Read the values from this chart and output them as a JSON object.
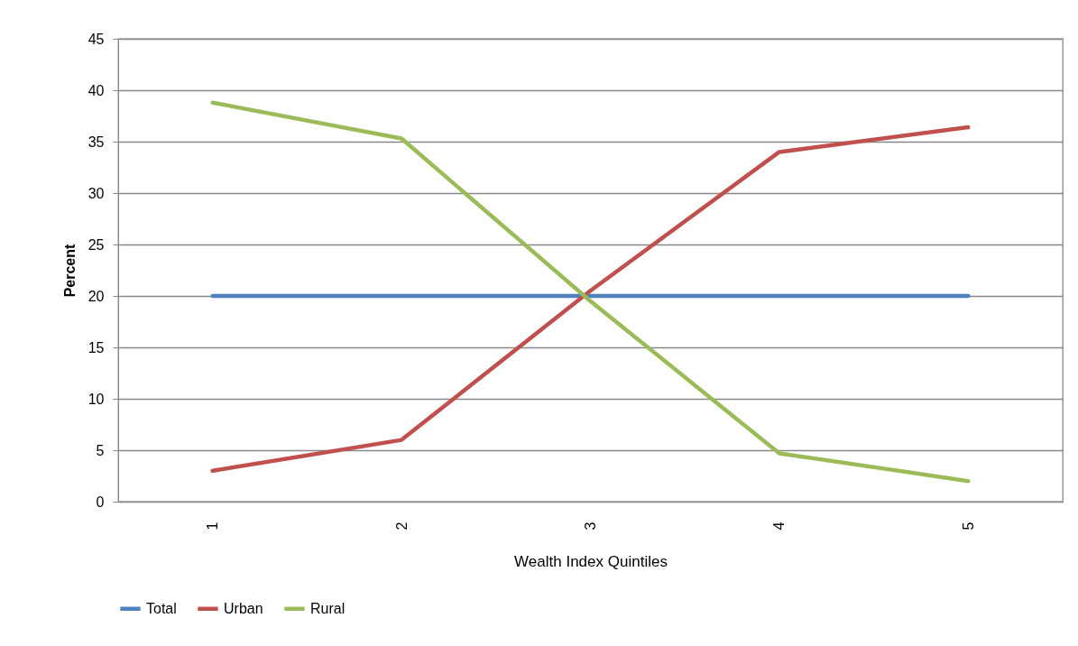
{
  "chart_data": {
    "type": "line",
    "xlabel": "Wealth Index Quintiles",
    "ylabel": "Percent",
    "categories": [
      "1",
      "2",
      "3",
      "4",
      "5"
    ],
    "series": [
      {
        "name": "Total",
        "color": "#4f81bd",
        "values": [
          20,
          20,
          20,
          20,
          20
        ]
      },
      {
        "name": "Urban",
        "color": "#c0504d",
        "values": [
          3,
          6,
          20.5,
          34,
          36.4
        ]
      },
      {
        "name": "Rural",
        "color": "#9bbb59",
        "values": [
          38.8,
          35.3,
          19.5,
          4.7,
          2
        ]
      }
    ],
    "ylim": [
      0,
      45
    ],
    "yticks": [
      0,
      5,
      10,
      15,
      20,
      25,
      30,
      35,
      40,
      45
    ],
    "grid": "y",
    "legend": "bottom",
    "marker": "none",
    "line_style": "solid"
  }
}
